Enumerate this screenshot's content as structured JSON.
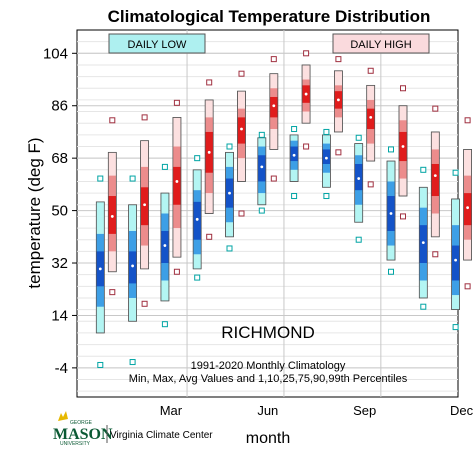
{
  "chart_data": {
    "type": "box-percentile",
    "title": "Climatological Temperature Distribution",
    "xlabel": "month",
    "ylabel": "temperature (deg F)",
    "ylim": [
      -14,
      112
    ],
    "yticks": [
      -4,
      14,
      32,
      50,
      68,
      86,
      104
    ],
    "xtick_labels": [
      {
        "month": 3,
        "label": "Mar"
      },
      {
        "month": 6,
        "label": "Jun"
      },
      {
        "month": 9,
        "label": "Sep"
      },
      {
        "month": 12,
        "label": "Dec"
      }
    ],
    "grid": true,
    "station": "RICHMOND",
    "annotation_line1": "1991-2020 Monthly Climatology",
    "annotation_line2": "Min, Max, Avg Values and 1,10,25,75,90,99th Percentiles",
    "legend": [
      {
        "label": "DAILY LOW",
        "fill": "#aef0f0"
      },
      {
        "label": "DAILY HIGH",
        "fill": "#fadadd"
      }
    ],
    "colors": {
      "low_outer": "#b3f5f3",
      "low_mid": "#3d9fe6",
      "low_inner": "#1453c8",
      "high_outer": "#fce0e0",
      "high_mid": "#ec8c8c",
      "high_inner": "#e01c1c",
      "low_marker": "#00a4a4",
      "high_marker": "#a03040"
    },
    "series": [
      {
        "name": "DAILY LOW",
        "months": [
          1,
          2,
          3,
          4,
          5,
          6,
          7,
          8,
          9,
          10,
          11,
          12
        ],
        "min": [
          -3,
          -2,
          11,
          27,
          37,
          50,
          55,
          55,
          40,
          29,
          17,
          10
        ],
        "p1": [
          8,
          12,
          19,
          30,
          41,
          52,
          60,
          58,
          46,
          33,
          20,
          16
        ],
        "p10": [
          17,
          20,
          26,
          35,
          46,
          56,
          64,
          63,
          52,
          38,
          26,
          21
        ],
        "p25": [
          24,
          25,
          32,
          40,
          51,
          60,
          67,
          66,
          57,
          43,
          32,
          26
        ],
        "p75": [
          36,
          36,
          43,
          53,
          61,
          69,
          72,
          71,
          66,
          55,
          45,
          38
        ],
        "p90": [
          42,
          43,
          49,
          57,
          65,
          72,
          74,
          73,
          69,
          60,
          51,
          45
        ],
        "p99": [
          53,
          52,
          56,
          64,
          70,
          75,
          76,
          76,
          73,
          67,
          58,
          54
        ],
        "max": [
          61,
          61,
          65,
          68,
          72,
          76,
          78,
          77,
          75,
          71,
          64,
          63
        ],
        "avg": [
          30,
          31,
          38,
          47,
          56,
          65,
          69,
          68,
          61,
          49,
          39,
          33
        ]
      },
      {
        "name": "DAILY HIGH",
        "months": [
          1,
          2,
          3,
          4,
          5,
          6,
          7,
          8,
          9,
          10,
          11,
          12
        ],
        "min": [
          22,
          18,
          29,
          41,
          49,
          61,
          72,
          70,
          59,
          48,
          35,
          24
        ],
        "p1": [
          29,
          30,
          34,
          49,
          60,
          71,
          80,
          77,
          67,
          55,
          41,
          33
        ],
        "p10": [
          36,
          38,
          44,
          56,
          68,
          78,
          84,
          82,
          73,
          61,
          49,
          40
        ],
        "p25": [
          42,
          45,
          52,
          63,
          73,
          82,
          87,
          85,
          78,
          67,
          55,
          45
        ],
        "p75": [
          55,
          58,
          65,
          77,
          82,
          89,
          93,
          91,
          85,
          77,
          66,
          56
        ],
        "p90": [
          62,
          65,
          72,
          82,
          85,
          92,
          95,
          93,
          88,
          81,
          71,
          62
        ],
        "p99": [
          70,
          74,
          82,
          88,
          91,
          97,
          100,
          98,
          93,
          86,
          77,
          71
        ],
        "max": [
          81,
          82,
          87,
          94,
          97,
          102,
          104,
          102,
          98,
          92,
          85,
          81
        ],
        "avg": [
          48,
          52,
          60,
          70,
          78,
          86,
          90,
          88,
          82,
          72,
          62,
          51
        ]
      }
    ]
  },
  "logo": {
    "name_top": "GEORGE",
    "name_main": "MASON",
    "name_bottom": "UNIVERSITY",
    "center": "Virginia Climate Center"
  }
}
